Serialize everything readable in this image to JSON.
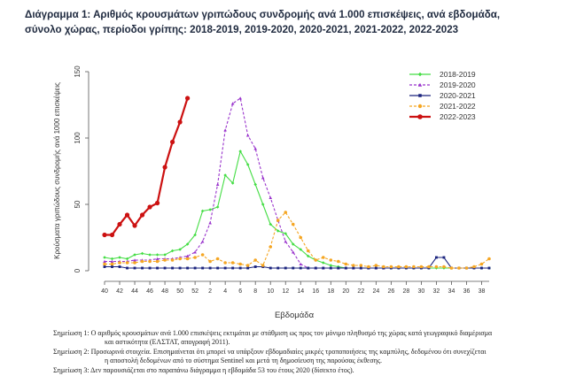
{
  "title_lines": [
    "Διάγραμμα 1: Αριθμός κρουσμάτων γριπώδους συνδρομής ανά 1.000 επισκέψεις, ανά εβδομάδα,",
    "σύνολο χώρας, περίοδοι γρίπης: 2018-2019, 2019-2020, 2020-2021, 2021-2022, 2022-2023"
  ],
  "chart_data": {
    "type": "line",
    "ylabel": "Κρούσματα γριπώδους συνδρομής ανά 1000 επισκέψεις",
    "xlabel": "Εβδομάδα",
    "ylim": [
      0,
      150
    ],
    "yticks": [
      0,
      50,
      100,
      150
    ],
    "x_weeks": [
      40,
      41,
      42,
      43,
      44,
      45,
      46,
      47,
      48,
      49,
      50,
      51,
      52,
      1,
      2,
      3,
      4,
      5,
      6,
      7,
      8,
      9,
      10,
      11,
      12,
      13,
      14,
      15,
      16,
      17,
      18,
      19,
      20,
      21,
      22,
      23,
      24,
      25,
      26,
      27,
      28,
      29,
      30,
      31,
      32,
      33,
      34,
      35,
      36,
      37,
      38,
      39
    ],
    "xtick_labels": [
      "40",
      "42",
      "44",
      "46",
      "48",
      "50",
      "52",
      "2",
      "4",
      "6",
      "8",
      "10",
      "12",
      "14",
      "16",
      "18",
      "20",
      "22",
      "24",
      "26",
      "28",
      "30",
      "32",
      "34",
      "36",
      "38"
    ],
    "legend_position": "top-right",
    "series": [
      {
        "name": "2018-2019",
        "color": "#44dd44",
        "marker": "diamond",
        "dash": "solid",
        "values": [
          10,
          9,
          10,
          9,
          12,
          13,
          12,
          12,
          12,
          15,
          16,
          20,
          27,
          45,
          46,
          48,
          72,
          66,
          90,
          80,
          65,
          50,
          35,
          30,
          28,
          20,
          16,
          11,
          8,
          6,
          4,
          3,
          2,
          2,
          2,
          2,
          2,
          2,
          2,
          2,
          2,
          2,
          2,
          2,
          2,
          2,
          2,
          2,
          2,
          2,
          2,
          2
        ]
      },
      {
        "name": "2019-2020",
        "color": "#9933cc",
        "marker": "triangle",
        "dash": "dashed",
        "values": [
          7,
          7,
          7,
          7,
          8,
          8,
          8,
          9,
          9,
          9,
          10,
          11,
          14,
          22,
          36,
          65,
          106,
          126,
          130,
          102,
          92,
          70,
          55,
          38,
          22,
          14,
          5,
          2,
          2,
          2,
          2,
          2,
          2,
          2,
          2,
          2,
          2,
          2,
          null,
          null,
          null,
          null,
          null,
          null,
          null,
          null,
          null,
          null,
          null,
          null,
          null,
          null
        ]
      },
      {
        "name": "2020-2021",
        "color": "#1a237e",
        "marker": "square",
        "dash": "solid",
        "values": [
          3,
          3,
          3,
          2,
          2,
          2,
          2,
          2,
          2,
          2,
          2,
          2,
          2,
          2,
          2,
          2,
          2,
          2,
          2,
          2,
          3,
          3,
          2,
          2,
          2,
          2,
          2,
          2,
          2,
          2,
          2,
          2,
          2,
          2,
          2,
          2,
          2,
          2,
          2,
          2,
          2,
          2,
          2,
          2,
          10,
          10,
          2,
          2,
          2,
          2,
          2,
          2
        ]
      },
      {
        "name": "2021-2022",
        "color": "#f5a623",
        "marker": "circle",
        "dash": "dashed",
        "values": [
          5,
          5,
          6,
          6,
          6,
          7,
          7,
          7,
          8,
          8,
          9,
          9,
          10,
          12,
          7,
          9,
          6,
          6,
          5,
          4,
          8,
          4,
          18,
          38,
          44,
          35,
          25,
          15,
          8,
          10,
          8,
          7,
          5,
          4,
          4,
          3,
          4,
          3,
          3,
          3,
          3,
          3,
          3,
          3,
          3,
          3,
          2,
          2,
          2,
          3,
          5,
          9
        ]
      },
      {
        "name": "2022-2023",
        "color": "#cc1111",
        "marker": "circle",
        "dash": "solid",
        "values": [
          27,
          27,
          35,
          42,
          34,
          42,
          48,
          51,
          78,
          97,
          112,
          130,
          null,
          null,
          null,
          null,
          null,
          null,
          null,
          null,
          null,
          null,
          null,
          null,
          null,
          null,
          null,
          null,
          null,
          null,
          null,
          null,
          null,
          null,
          null,
          null,
          null,
          null,
          null,
          null,
          null,
          null,
          null,
          null,
          null,
          null,
          null,
          null,
          null,
          null,
          null,
          null
        ]
      }
    ]
  },
  "notes": [
    {
      "line1": "Σημείωση 1: Ο αριθμός κρουσμάτων ανά 1.000 επισκέψεις εκτιμάται με στάθμιση ως προς τον μόνιμο πληθυσμό της χώρας κατά γεωγραφικό διαμέρισμα",
      "line2": "και αστικότητα (ΕΛΣΤΑΤ, απογραφή 2011)."
    },
    {
      "line1": "Σημείωση 2: Προσωρινά στοιχεία. Επισημαίνεται ότι μπορεί να υπάρξουν εβδομαδιαίες μικρές τροποποιήσεις της καμπύλης, δεδομένου ότι συνεχίζεται",
      "line2": "η αποστολή δεδομένων από το σύστημα Sentinel και μετά τη δημοσίευση της παρούσας έκθεσης."
    },
    {
      "line1": "Σημείωση 3: Δεν παρουσιάζεται στο παραπάνω διάγραμμα η εβδομάδα 53 του έτους 2020 (δίσεκτο έτος).",
      "line2": ""
    }
  ]
}
